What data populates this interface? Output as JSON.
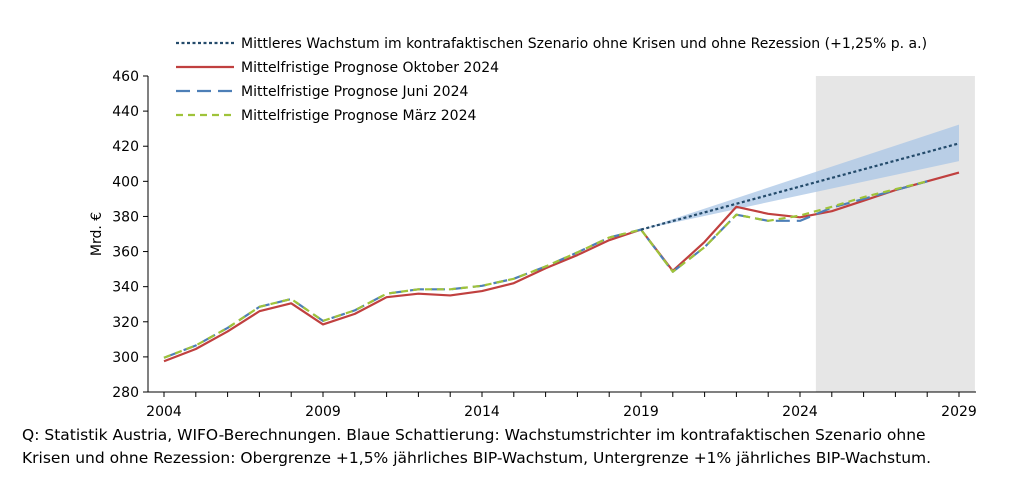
{
  "chart_data": {
    "type": "line",
    "xlabel": "",
    "ylabel": "Mrd. €",
    "ylim": [
      280,
      460
    ],
    "yticks": [
      280,
      300,
      320,
      340,
      360,
      380,
      400,
      420,
      440,
      460
    ],
    "xlim": [
      2004,
      2029
    ],
    "xticks": [
      2004,
      2009,
      2014,
      2019,
      2024,
      2029
    ],
    "grid": false,
    "legend_position": "top-left",
    "forecast_shading": {
      "from": 2024.5,
      "to": 2029.5,
      "color": "#e6e6e6"
    },
    "band": {
      "x": [
        2019,
        2029
      ],
      "upper": [
        372.5,
        432.3
      ],
      "lower": [
        372.5,
        411.5
      ],
      "color": "#a9c6e6"
    },
    "series": [
      {
        "name": "Mittleres Wachstum im kontrafaktischen Szenario ohne Krisen und ohne Rezession (+1,25% p. a.)",
        "color": "#244b6b",
        "style": "dotted",
        "x": [
          2019,
          2029
        ],
        "y": [
          372.5,
          421.6
        ]
      },
      {
        "name": "Mittelfristige Prognose Oktober 2024",
        "color": "#c0403f",
        "style": "solid",
        "x": [
          2004,
          2005,
          2006,
          2007,
          2008,
          2009,
          2010,
          2011,
          2012,
          2013,
          2014,
          2015,
          2016,
          2017,
          2018,
          2019,
          2020,
          2021,
          2022,
          2023,
          2024,
          2025,
          2026,
          2027,
          2028,
          2029
        ],
        "y": [
          297.5,
          304.5,
          314.5,
          326,
          330.5,
          318.5,
          324.5,
          334,
          336,
          335,
          337.5,
          342,
          350.5,
          358,
          366.5,
          372.5,
          349,
          365.5,
          385.5,
          381.5,
          379.5,
          383,
          389,
          395,
          400,
          405
        ]
      },
      {
        "name": "Mittelfristige Prognose Juni 2024",
        "color": "#4d7fb7",
        "style": "long-dash",
        "x": [
          2004,
          2005,
          2006,
          2007,
          2008,
          2009,
          2010,
          2011,
          2012,
          2013,
          2014,
          2015,
          2016,
          2017,
          2018,
          2019,
          2020,
          2021,
          2022,
          2023,
          2024,
          2025,
          2026,
          2027,
          2028
        ],
        "y": [
          299.5,
          306.5,
          316.5,
          328.5,
          333,
          320.5,
          326.5,
          336,
          338.5,
          338.5,
          340.5,
          344.5,
          351.5,
          359.5,
          368,
          372.5,
          348.5,
          362.5,
          381,
          377.5,
          377.5,
          385,
          390,
          395,
          400
        ]
      },
      {
        "name": "Mittelfristige Prognose März 2024",
        "color": "#9fc33a",
        "style": "dashed",
        "x": [
          2004,
          2005,
          2006,
          2007,
          2008,
          2009,
          2010,
          2011,
          2012,
          2013,
          2014,
          2015,
          2016,
          2017,
          2018,
          2019,
          2020,
          2021,
          2022,
          2023,
          2024,
          2025,
          2026,
          2027,
          2028
        ],
        "y": [
          299.5,
          306.5,
          316.5,
          328.5,
          333,
          320.5,
          326.5,
          336,
          338.5,
          338.5,
          340.5,
          344.5,
          351.5,
          359.5,
          368,
          372.5,
          348.5,
          362.5,
          381,
          377.5,
          380.5,
          385.5,
          391,
          395.5,
          400
        ]
      }
    ]
  },
  "source_note": {
    "line1": "Q: Statistik Austria, WIFO-Berechnungen. Blaue Schattierung: Wachstumstrichter im kontrafaktischen Szenario ohne",
    "line2": "Krisen und ohne Rezession: Obergrenze +1,5% jährliches BIP-Wachstum, Untergrenze +1% jährliches BIP-Wachstum."
  }
}
